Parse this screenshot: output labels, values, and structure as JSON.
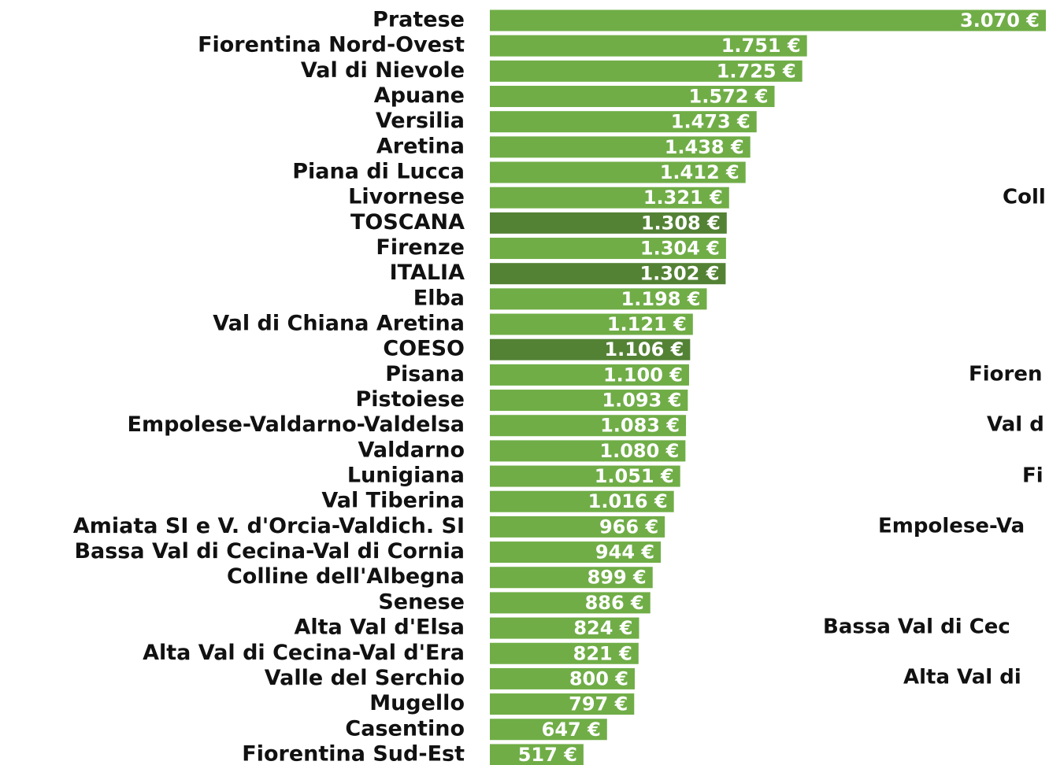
{
  "chart_data": {
    "type": "bar",
    "orientation": "horizontal",
    "categories": [
      "Pratese",
      "Fiorentina Nord-Ovest",
      "Val di Nievole",
      "Apuane",
      "Versilia",
      "Aretina",
      "Piana di Lucca",
      "Livornese",
      "TOSCANA",
      "Firenze",
      "ITALIA",
      "Elba",
      "Val di Chiana Aretina",
      "COESO",
      "Pisana",
      "Pistoiese",
      "Empolese-Valdarno-Valdelsa",
      "Valdarno",
      "Lunigiana",
      "Val Tiberina",
      "Amiata SI e V. d'Orcia-Valdich. SI",
      "Bassa Val di Cecina-Val di Cornia",
      "Colline dell'Albegna",
      "Senese",
      "Alta Val d'Elsa",
      "Alta Val di Cecina-Val d'Era",
      "Valle del Serchio",
      "Mugello",
      "Casentino",
      "Fiorentina Sud-Est"
    ],
    "values": [
      3070,
      1751,
      1725,
      1572,
      1473,
      1438,
      1412,
      1321,
      1308,
      1304,
      1302,
      1198,
      1121,
      1106,
      1100,
      1093,
      1083,
      1080,
      1051,
      1016,
      966,
      944,
      899,
      886,
      824,
      821,
      800,
      797,
      647,
      517
    ],
    "value_labels": [
      "3.070 €",
      "1.751 €",
      "1.725 €",
      "1.572 €",
      "1.473 €",
      "1.438 €",
      "1.412 €",
      "1.321 €",
      "1.308 €",
      "1.304 €",
      "1.302 €",
      "1.198 €",
      "1.121 €",
      "1.106 €",
      "1.100 €",
      "1.093 €",
      "1.083 €",
      "1.080 €",
      "1.051 €",
      "1.016 €",
      "966 €",
      "944 €",
      "899 €",
      "886 €",
      "824 €",
      "821 €",
      "800 €",
      "797 €",
      "647 €",
      "517 €"
    ],
    "colors": [
      "#70ad47",
      "#70ad47",
      "#70ad47",
      "#70ad47",
      "#70ad47",
      "#70ad47",
      "#70ad47",
      "#70ad47",
      "#548235",
      "#70ad47",
      "#548235",
      "#70ad47",
      "#70ad47",
      "#548235",
      "#70ad47",
      "#70ad47",
      "#70ad47",
      "#70ad47",
      "#70ad47",
      "#70ad47",
      "#70ad47",
      "#70ad47",
      "#70ad47",
      "#70ad47",
      "#70ad47",
      "#70ad47",
      "#70ad47",
      "#70ad47",
      "#70ad47",
      "#70ad47"
    ],
    "annotations": [
      "Coll",
      "Fioren",
      "Val d",
      "Fi",
      "Empolese-Va",
      "Bassa Val di Cec",
      "Alta Val di"
    ]
  }
}
